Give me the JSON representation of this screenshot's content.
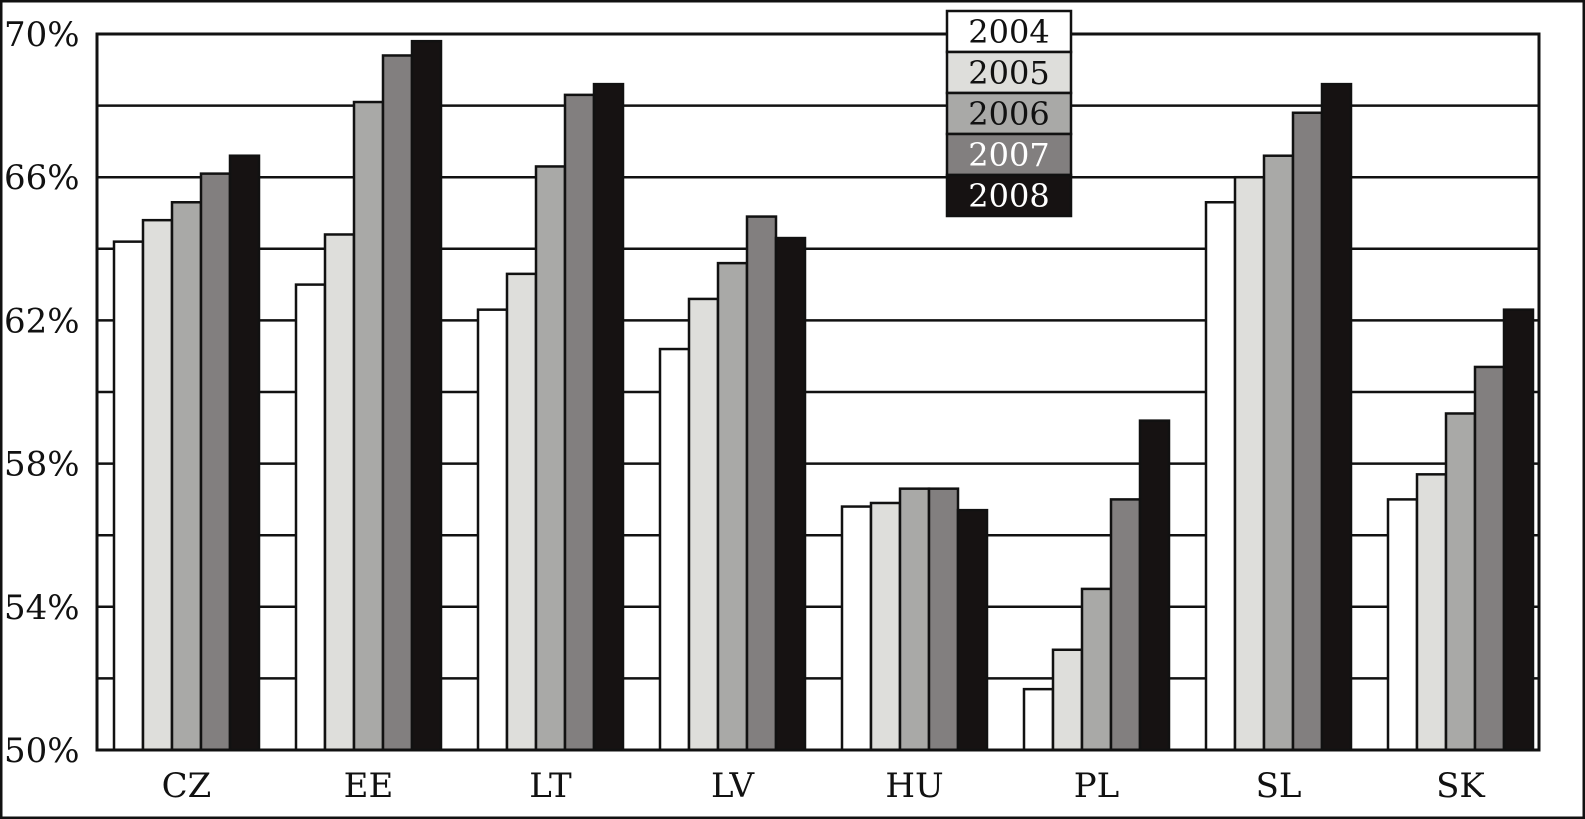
{
  "chart_data": {
    "type": "bar",
    "title": "",
    "xlabel": "",
    "ylabel": "",
    "ylim": [
      50,
      70
    ],
    "y_ticks": [
      50,
      54,
      58,
      62,
      66,
      70
    ],
    "y_tick_labels": [
      "50%",
      "54%",
      "58%",
      "62%",
      "66%",
      "70%"
    ],
    "grid": "horizontal every 2%",
    "legend_position": "top-center",
    "categories": [
      "CZ",
      "EE",
      "LT",
      "LV",
      "HU",
      "PL",
      "SL",
      "SK"
    ],
    "series": [
      {
        "name": "2004",
        "color": "#ffffff",
        "text_color": "#111111",
        "values": [
          64.2,
          63.0,
          62.3,
          61.2,
          56.8,
          51.7,
          65.3,
          57.0
        ]
      },
      {
        "name": "2005",
        "color": "#dededb",
        "text_color": "#111111",
        "values": [
          64.8,
          64.4,
          63.3,
          62.6,
          56.9,
          52.8,
          66.0,
          57.7
        ]
      },
      {
        "name": "2006",
        "color": "#a9a9a7",
        "text_color": "#111111",
        "values": [
          65.3,
          68.1,
          66.3,
          63.6,
          57.3,
          54.5,
          66.6,
          59.4
        ]
      },
      {
        "name": "2007",
        "color": "#827f7f",
        "text_color": "#ffffff",
        "values": [
          66.1,
          69.4,
          68.3,
          64.9,
          57.3,
          57.0,
          67.8,
          60.7
        ]
      },
      {
        "name": "2008",
        "color": "#161212",
        "text_color": "#ffffff",
        "values": [
          66.6,
          69.8,
          68.6,
          64.3,
          56.7,
          59.2,
          68.6,
          62.3
        ]
      }
    ]
  }
}
